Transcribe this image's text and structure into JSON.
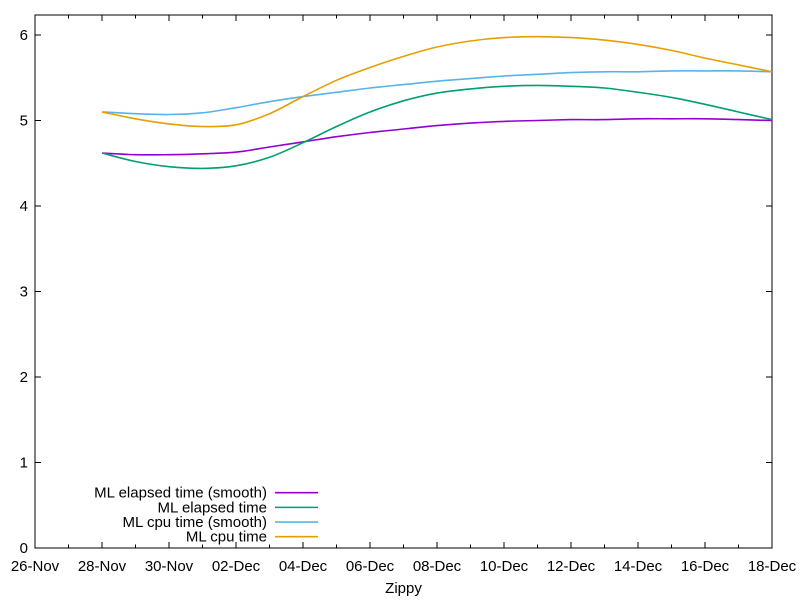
{
  "chart_data": {
    "type": "line",
    "title": "",
    "xlabel": "Zippy",
    "ylabel": "",
    "background_color": "#ffffff",
    "axis_color": "#000000",
    "grid": false,
    "legend_position": "bottom-left-inside",
    "x_axis": {
      "start_label": "26-Nov",
      "end_label": "18-Dec",
      "major_tick_labels": [
        "26-Nov",
        "28-Nov",
        "30-Nov",
        "02-Dec",
        "04-Dec",
        "06-Dec",
        "08-Dec",
        "10-Dec",
        "12-Dec",
        "14-Dec",
        "16-Dec",
        "18-Dec"
      ],
      "major_tick_day_offsets": [
        0,
        2,
        4,
        6,
        8,
        10,
        12,
        14,
        16,
        18,
        20,
        22
      ],
      "minor_tick_day_offsets": [
        1,
        3,
        5,
        7,
        9,
        11,
        13,
        15,
        17,
        19,
        21
      ],
      "total_days": 22
    },
    "y_axis": {
      "tick_labels": [
        "0",
        "1",
        "2",
        "3",
        "4",
        "5",
        "6"
      ],
      "tick_values": [
        0,
        1,
        2,
        3,
        4,
        5,
        6
      ],
      "min": 0,
      "max": 6
    },
    "ylim": [
      0,
      6.24
    ],
    "data_day_offsets": [
      2,
      3,
      4,
      5,
      6,
      7,
      8,
      9,
      10,
      11,
      12,
      13,
      14,
      15,
      16,
      17,
      18,
      19,
      20,
      21,
      22
    ],
    "data_dates": [
      "28-Nov",
      "29-Nov",
      "30-Nov",
      "01-Dec",
      "02-Dec",
      "03-Dec",
      "04-Dec",
      "05-Dec",
      "06-Dec",
      "07-Dec",
      "08-Dec",
      "09-Dec",
      "10-Dec",
      "11-Dec",
      "12-Dec",
      "13-Dec",
      "14-Dec",
      "15-Dec",
      "16-Dec",
      "17-Dec",
      "18-Dec"
    ],
    "series": [
      {
        "name": "ML elapsed time (smooth)",
        "color": "#9400d3",
        "values": [
          4.62,
          4.6,
          4.6,
          4.61,
          4.63,
          4.69,
          4.75,
          4.81,
          4.86,
          4.9,
          4.94,
          4.97,
          4.99,
          5.0,
          5.01,
          5.01,
          5.02,
          5.02,
          5.02,
          5.01,
          5.0
        ]
      },
      {
        "name": "ML elapsed time",
        "color": "#009e73",
        "values": [
          4.62,
          4.52,
          4.46,
          4.44,
          4.47,
          4.57,
          4.74,
          4.93,
          5.1,
          5.23,
          5.32,
          5.37,
          5.4,
          5.41,
          5.4,
          5.38,
          5.33,
          5.27,
          5.19,
          5.1,
          5.01
        ]
      },
      {
        "name": "ML cpu time (smooth)",
        "color": "#56b4e9",
        "values": [
          5.1,
          5.08,
          5.07,
          5.09,
          5.15,
          5.22,
          5.28,
          5.33,
          5.38,
          5.42,
          5.46,
          5.49,
          5.52,
          5.54,
          5.56,
          5.57,
          5.57,
          5.58,
          5.58,
          5.58,
          5.57
        ]
      },
      {
        "name": "ML cpu time",
        "color": "#e69f00",
        "values": [
          5.1,
          5.02,
          4.96,
          4.93,
          4.95,
          5.08,
          5.28,
          5.47,
          5.62,
          5.75,
          5.86,
          5.93,
          5.97,
          5.98,
          5.97,
          5.94,
          5.89,
          5.82,
          5.73,
          5.65,
          5.57
        ]
      }
    ]
  }
}
